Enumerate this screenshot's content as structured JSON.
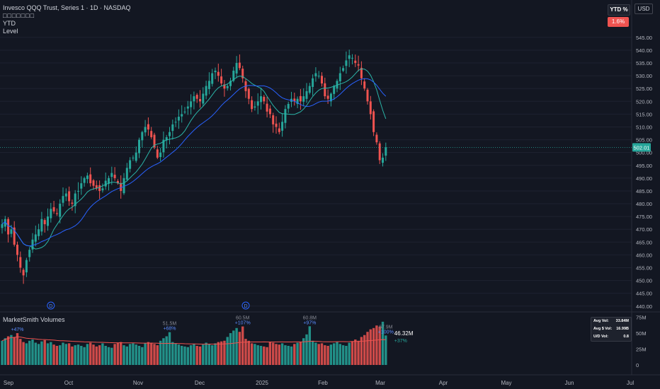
{
  "header": {
    "title": "Invesco QQQ Trust, Series 1 · 1D · NASDAQ",
    "subtitle": "□□□□□□□",
    "indicator_1": "YTD",
    "indicator_2": "Level"
  },
  "controls": {
    "ytd_label": "YTD %",
    "ytd_value": "1.6%",
    "currency": "USD"
  },
  "price_axis": {
    "current_price": "502.01",
    "ticks": [
      "545.00",
      "540.00",
      "535.00",
      "530.00",
      "525.00",
      "520.00",
      "515.00",
      "510.00",
      "505.00",
      "500.00",
      "495.00",
      "490.00",
      "485.00",
      "480.00",
      "475.00",
      "470.00",
      "465.00",
      "460.00",
      "455.00",
      "450.00",
      "445.00",
      "440.00"
    ]
  },
  "volume_pane": {
    "title": "MarketSmith Volumes",
    "ticks": [
      "75M",
      "50M",
      "25M",
      "0"
    ],
    "current_volume": "46.32M",
    "current_pct": "+37%",
    "annotations": [
      {
        "value": "",
        "pct": "+47%",
        "idx": 5
      },
      {
        "value": "51.5M",
        "pct": "+68%",
        "idx": 55
      },
      {
        "value": "60.5M",
        "pct": "+107%",
        "idx": 79
      },
      {
        "value": "60.8M",
        "pct": "+97%",
        "idx": 101
      },
      {
        "value": "67.9M",
        "pct": "+100%",
        "idx": 126
      }
    ],
    "stats": [
      {
        "label": "Avg Vol:",
        "value": "33.84M"
      },
      {
        "label": "Avg $ Vol:",
        "value": "16.99B"
      },
      {
        "label": "U/D Vol:",
        "value": "0.8"
      }
    ]
  },
  "dividend_markers": [
    {
      "label": "D",
      "idx": 16
    },
    {
      "label": "D",
      "idx": 80
    }
  ],
  "time_axis": {
    "labels": [
      "Sep",
      "Oct",
      "Nov",
      "Dec",
      "2025",
      "Feb",
      "Mar",
      "Apr",
      "May",
      "Jun",
      "Jul"
    ]
  },
  "colors": {
    "up": "#26a69a",
    "down": "#ef5350",
    "background": "#131722",
    "ma_fast": "#2bb5a8",
    "ma_slow": "#2962ff",
    "vol_ma": "#ef5350"
  },
  "chart_data": {
    "type": "candlestick",
    "symbol": "QQQ",
    "interval": "1D",
    "ylim": [
      438,
      548
    ],
    "closes": [
      472,
      474,
      468,
      470,
      464,
      460,
      455,
      452,
      458,
      462,
      466,
      468,
      470,
      474,
      472,
      475,
      478,
      477,
      476,
      480,
      483,
      484,
      481,
      480,
      484,
      485,
      488,
      490,
      491,
      488,
      487,
      486,
      485,
      486,
      489,
      490,
      492,
      490,
      488,
      485,
      490,
      494,
      497,
      498,
      500,
      505,
      508,
      510,
      509,
      506,
      502,
      498,
      500,
      505,
      506,
      508,
      511,
      512,
      514,
      515,
      516,
      518,
      520,
      522,
      521,
      520,
      523,
      526,
      528,
      531,
      532,
      530,
      527,
      525,
      526,
      528,
      532,
      535,
      533,
      529,
      524,
      521,
      517,
      518,
      520,
      522,
      520,
      516,
      515,
      511,
      510,
      508,
      512,
      517,
      519,
      521,
      520,
      521,
      520,
      522,
      524,
      526,
      529,
      531,
      530,
      527,
      522,
      521,
      523,
      526,
      528,
      531,
      533,
      536,
      538,
      537,
      535,
      534,
      529,
      525,
      520,
      515,
      508,
      504,
      497,
      498,
      502
    ],
    "volumes": [
      38,
      42,
      45,
      47,
      44,
      50,
      41,
      36,
      34,
      38,
      40,
      35,
      33,
      37,
      39,
      34,
      36,
      32,
      30,
      31,
      35,
      33,
      34,
      29,
      31,
      32,
      30,
      28,
      33,
      35,
      32,
      29,
      31,
      34,
      30,
      28,
      27,
      33,
      35,
      36,
      31,
      29,
      33,
      34,
      32,
      30,
      28,
      34,
      36,
      35,
      33,
      31,
      38,
      42,
      45,
      51.5,
      36,
      34,
      32,
      30,
      29,
      28,
      31,
      33,
      30,
      29,
      32,
      35,
      33,
      31,
      34,
      36,
      37,
      38,
      44,
      50,
      54,
      58,
      52,
      60.5,
      41,
      38,
      34,
      33,
      31,
      30,
      29,
      28,
      36,
      35,
      33,
      32,
      34,
      31,
      30,
      29,
      33,
      35,
      36,
      42,
      48,
      60.8,
      38,
      35,
      33,
      34,
      31,
      30,
      32,
      34,
      36,
      33,
      31,
      30,
      35,
      37,
      40,
      38,
      44,
      47,
      52,
      56,
      58,
      62,
      60,
      67.9,
      46.32
    ],
    "time_labels": [
      "Sep",
      "Oct",
      "Nov",
      "Dec",
      "2025",
      "Feb",
      "Mar",
      "Apr",
      "May",
      "Jun",
      "Jul"
    ]
  }
}
